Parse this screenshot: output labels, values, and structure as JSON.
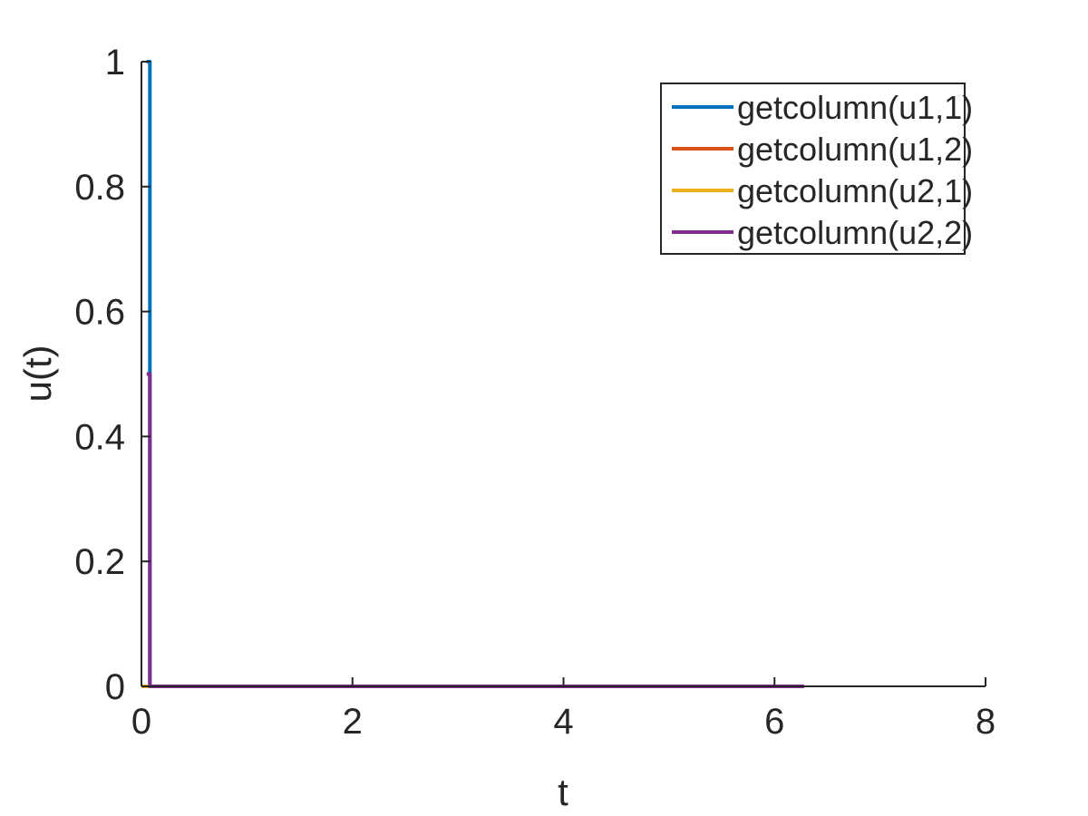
{
  "chart_data": {
    "type": "line",
    "title": "",
    "xlabel": "t",
    "ylabel": "u(t)",
    "xlim": [
      0,
      8
    ],
    "ylim": [
      0,
      1
    ],
    "xticks": [
      0,
      2,
      4,
      6,
      8
    ],
    "xtick_labels": [
      "0",
      "2",
      "4",
      "6",
      "8"
    ],
    "yticks": [
      0,
      0.2,
      0.4,
      0.6,
      0.8,
      1
    ],
    "ytick_labels": [
      "0",
      "0.2",
      "0.4",
      "0.6",
      "0.8",
      "1"
    ],
    "grid": false,
    "legend_position": "top-right",
    "series": [
      {
        "name": "getcolumn(u1,1)",
        "color": "#0072BD",
        "x": [
          0.05,
          0.05,
          0.08,
          0.08,
          6.28
        ],
        "y": [
          1,
          1,
          1,
          0,
          0
        ]
      },
      {
        "name": "getcolumn(u1,2)",
        "color": "#D95319",
        "x": [
          0.05,
          0.08,
          6.28
        ],
        "y": [
          0,
          0,
          0
        ]
      },
      {
        "name": "getcolumn(u2,1)",
        "color": "#EDB120",
        "x": [
          0.0,
          0.08,
          6.28
        ],
        "y": [
          0,
          0,
          0
        ]
      },
      {
        "name": "getcolumn(u2,2)",
        "color": "#7E2F8E",
        "x": [
          0.05,
          0.05,
          0.08,
          0.08,
          6.28
        ],
        "y": [
          0.5,
          0.5,
          0.5,
          0,
          0
        ]
      }
    ]
  }
}
